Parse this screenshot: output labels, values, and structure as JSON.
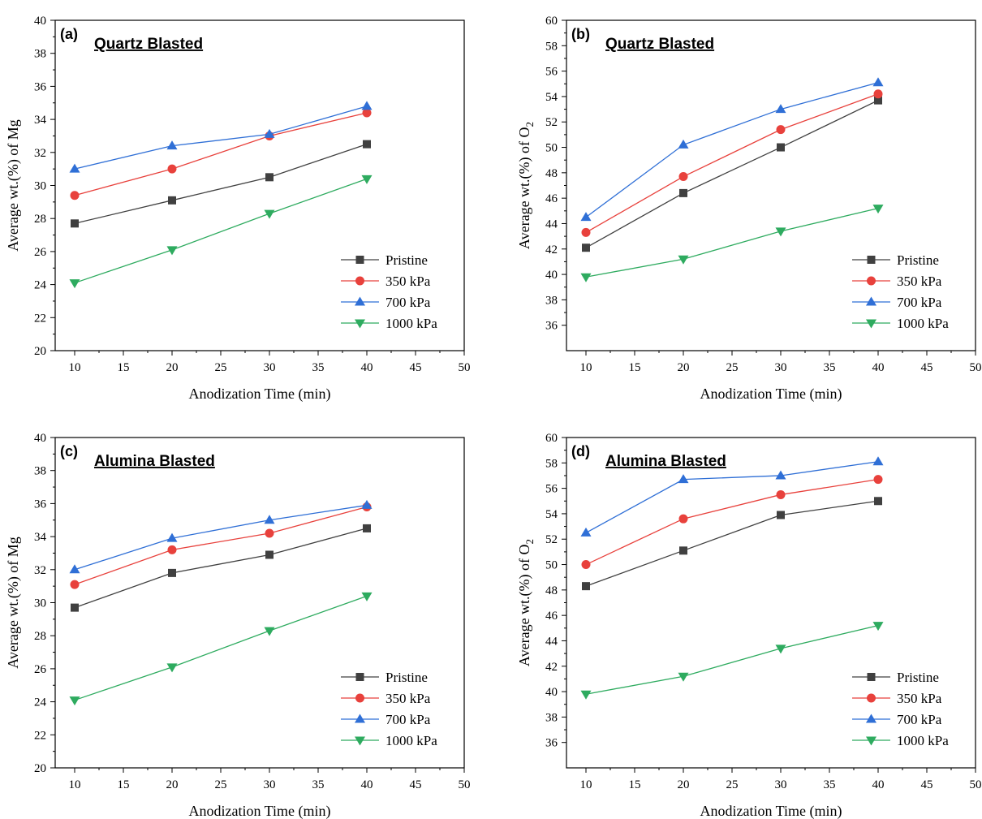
{
  "chart_data": [
    {
      "type": "line",
      "panel_label": "(a)",
      "title": "Quartz Blasted",
      "xlabel": "Anodization Time (min)",
      "ylabel_main": "Average wt.(%) of Mg",
      "ylabel_sub": "",
      "xlim": [
        8,
        50
      ],
      "ylim": [
        20,
        40
      ],
      "xticks": [
        10,
        15,
        20,
        25,
        30,
        35,
        40,
        45,
        50
      ],
      "yticks": [
        20,
        22,
        24,
        26,
        28,
        30,
        32,
        34,
        36,
        38,
        40
      ],
      "x": [
        10,
        20,
        30,
        40
      ],
      "legend_position": "lower-right",
      "series": [
        {
          "name": "Pristine",
          "color": "#404040",
          "marker": "square",
          "values": [
            27.7,
            29.1,
            30.5,
            32.5
          ]
        },
        {
          "name": "350 kPa",
          "color": "#e8413c",
          "marker": "circle",
          "values": [
            29.4,
            31.0,
            33.0,
            34.4
          ]
        },
        {
          "name": "700 kPa",
          "color": "#2f6fd6",
          "marker": "triangle-up",
          "values": [
            31.0,
            32.4,
            33.1,
            34.8
          ]
        },
        {
          "name": "1000 kPa",
          "color": "#2eab5f",
          "marker": "triangle-down",
          "values": [
            24.1,
            26.1,
            28.3,
            30.4
          ]
        }
      ]
    },
    {
      "type": "line",
      "panel_label": "(b)",
      "title": "Quartz Blasted",
      "xlabel": "Anodization Time (min)",
      "ylabel_main": "Average wt.(%) of O",
      "ylabel_sub": "2",
      "xlim": [
        8,
        50
      ],
      "ylim": [
        34,
        60
      ],
      "xticks": [
        10,
        15,
        20,
        25,
        30,
        35,
        40,
        45,
        50
      ],
      "yticks": [
        36,
        38,
        40,
        42,
        44,
        46,
        48,
        50,
        52,
        54,
        56,
        58,
        60
      ],
      "x": [
        10,
        20,
        30,
        40
      ],
      "legend_position": "lower-right",
      "series": [
        {
          "name": "Pristine",
          "color": "#404040",
          "marker": "square",
          "values": [
            42.1,
            46.4,
            50.0,
            53.7
          ]
        },
        {
          "name": "350 kPa",
          "color": "#e8413c",
          "marker": "circle",
          "values": [
            43.3,
            47.7,
            51.4,
            54.2
          ]
        },
        {
          "name": "700 kPa",
          "color": "#2f6fd6",
          "marker": "triangle-up",
          "values": [
            44.5,
            50.2,
            53.0,
            55.1
          ]
        },
        {
          "name": "1000 kPa",
          "color": "#2eab5f",
          "marker": "triangle-down",
          "values": [
            39.8,
            41.2,
            43.4,
            45.2
          ]
        }
      ]
    },
    {
      "type": "line",
      "panel_label": "(c)",
      "title": "Alumina Blasted",
      "xlabel": "Anodization Time (min)",
      "ylabel_main": "Average wt.(%) of Mg",
      "ylabel_sub": "",
      "xlim": [
        8,
        50
      ],
      "ylim": [
        20,
        40
      ],
      "xticks": [
        10,
        15,
        20,
        25,
        30,
        35,
        40,
        45,
        50
      ],
      "yticks": [
        20,
        22,
        24,
        26,
        28,
        30,
        32,
        34,
        36,
        38,
        40
      ],
      "x": [
        10,
        20,
        30,
        40
      ],
      "legend_position": "lower-right",
      "series": [
        {
          "name": "Pristine",
          "color": "#404040",
          "marker": "square",
          "values": [
            29.7,
            31.8,
            32.9,
            34.5
          ]
        },
        {
          "name": "350 kPa",
          "color": "#e8413c",
          "marker": "circle",
          "values": [
            31.1,
            33.2,
            34.2,
            35.8
          ]
        },
        {
          "name": "700 kPa",
          "color": "#2f6fd6",
          "marker": "triangle-up",
          "values": [
            32.0,
            33.9,
            35.0,
            35.9
          ]
        },
        {
          "name": "1000 kPa",
          "color": "#2eab5f",
          "marker": "triangle-down",
          "values": [
            24.1,
            26.1,
            28.3,
            30.4
          ]
        }
      ]
    },
    {
      "type": "line",
      "panel_label": "(d)",
      "title": "Alumina Blasted",
      "xlabel": "Anodization Time (min)",
      "ylabel_main": "Average wt.(%) of O",
      "ylabel_sub": "2",
      "xlim": [
        8,
        50
      ],
      "ylim": [
        34,
        60
      ],
      "xticks": [
        10,
        15,
        20,
        25,
        30,
        35,
        40,
        45,
        50
      ],
      "yticks": [
        36,
        38,
        40,
        42,
        44,
        46,
        48,
        50,
        52,
        54,
        56,
        58,
        60
      ],
      "x": [
        10,
        20,
        30,
        40
      ],
      "legend_position": "lower-right",
      "series": [
        {
          "name": "Pristine",
          "color": "#404040",
          "marker": "square",
          "values": [
            48.3,
            51.1,
            53.9,
            55.0
          ]
        },
        {
          "name": "350 kPa",
          "color": "#e8413c",
          "marker": "circle",
          "values": [
            50.0,
            53.6,
            55.5,
            56.7
          ]
        },
        {
          "name": "700 kPa",
          "color": "#2f6fd6",
          "marker": "triangle-up",
          "values": [
            52.5,
            56.7,
            57.0,
            58.1
          ]
        },
        {
          "name": "1000 kPa",
          "color": "#2eab5f",
          "marker": "triangle-down",
          "values": [
            39.8,
            41.2,
            43.4,
            45.2
          ]
        }
      ]
    }
  ]
}
